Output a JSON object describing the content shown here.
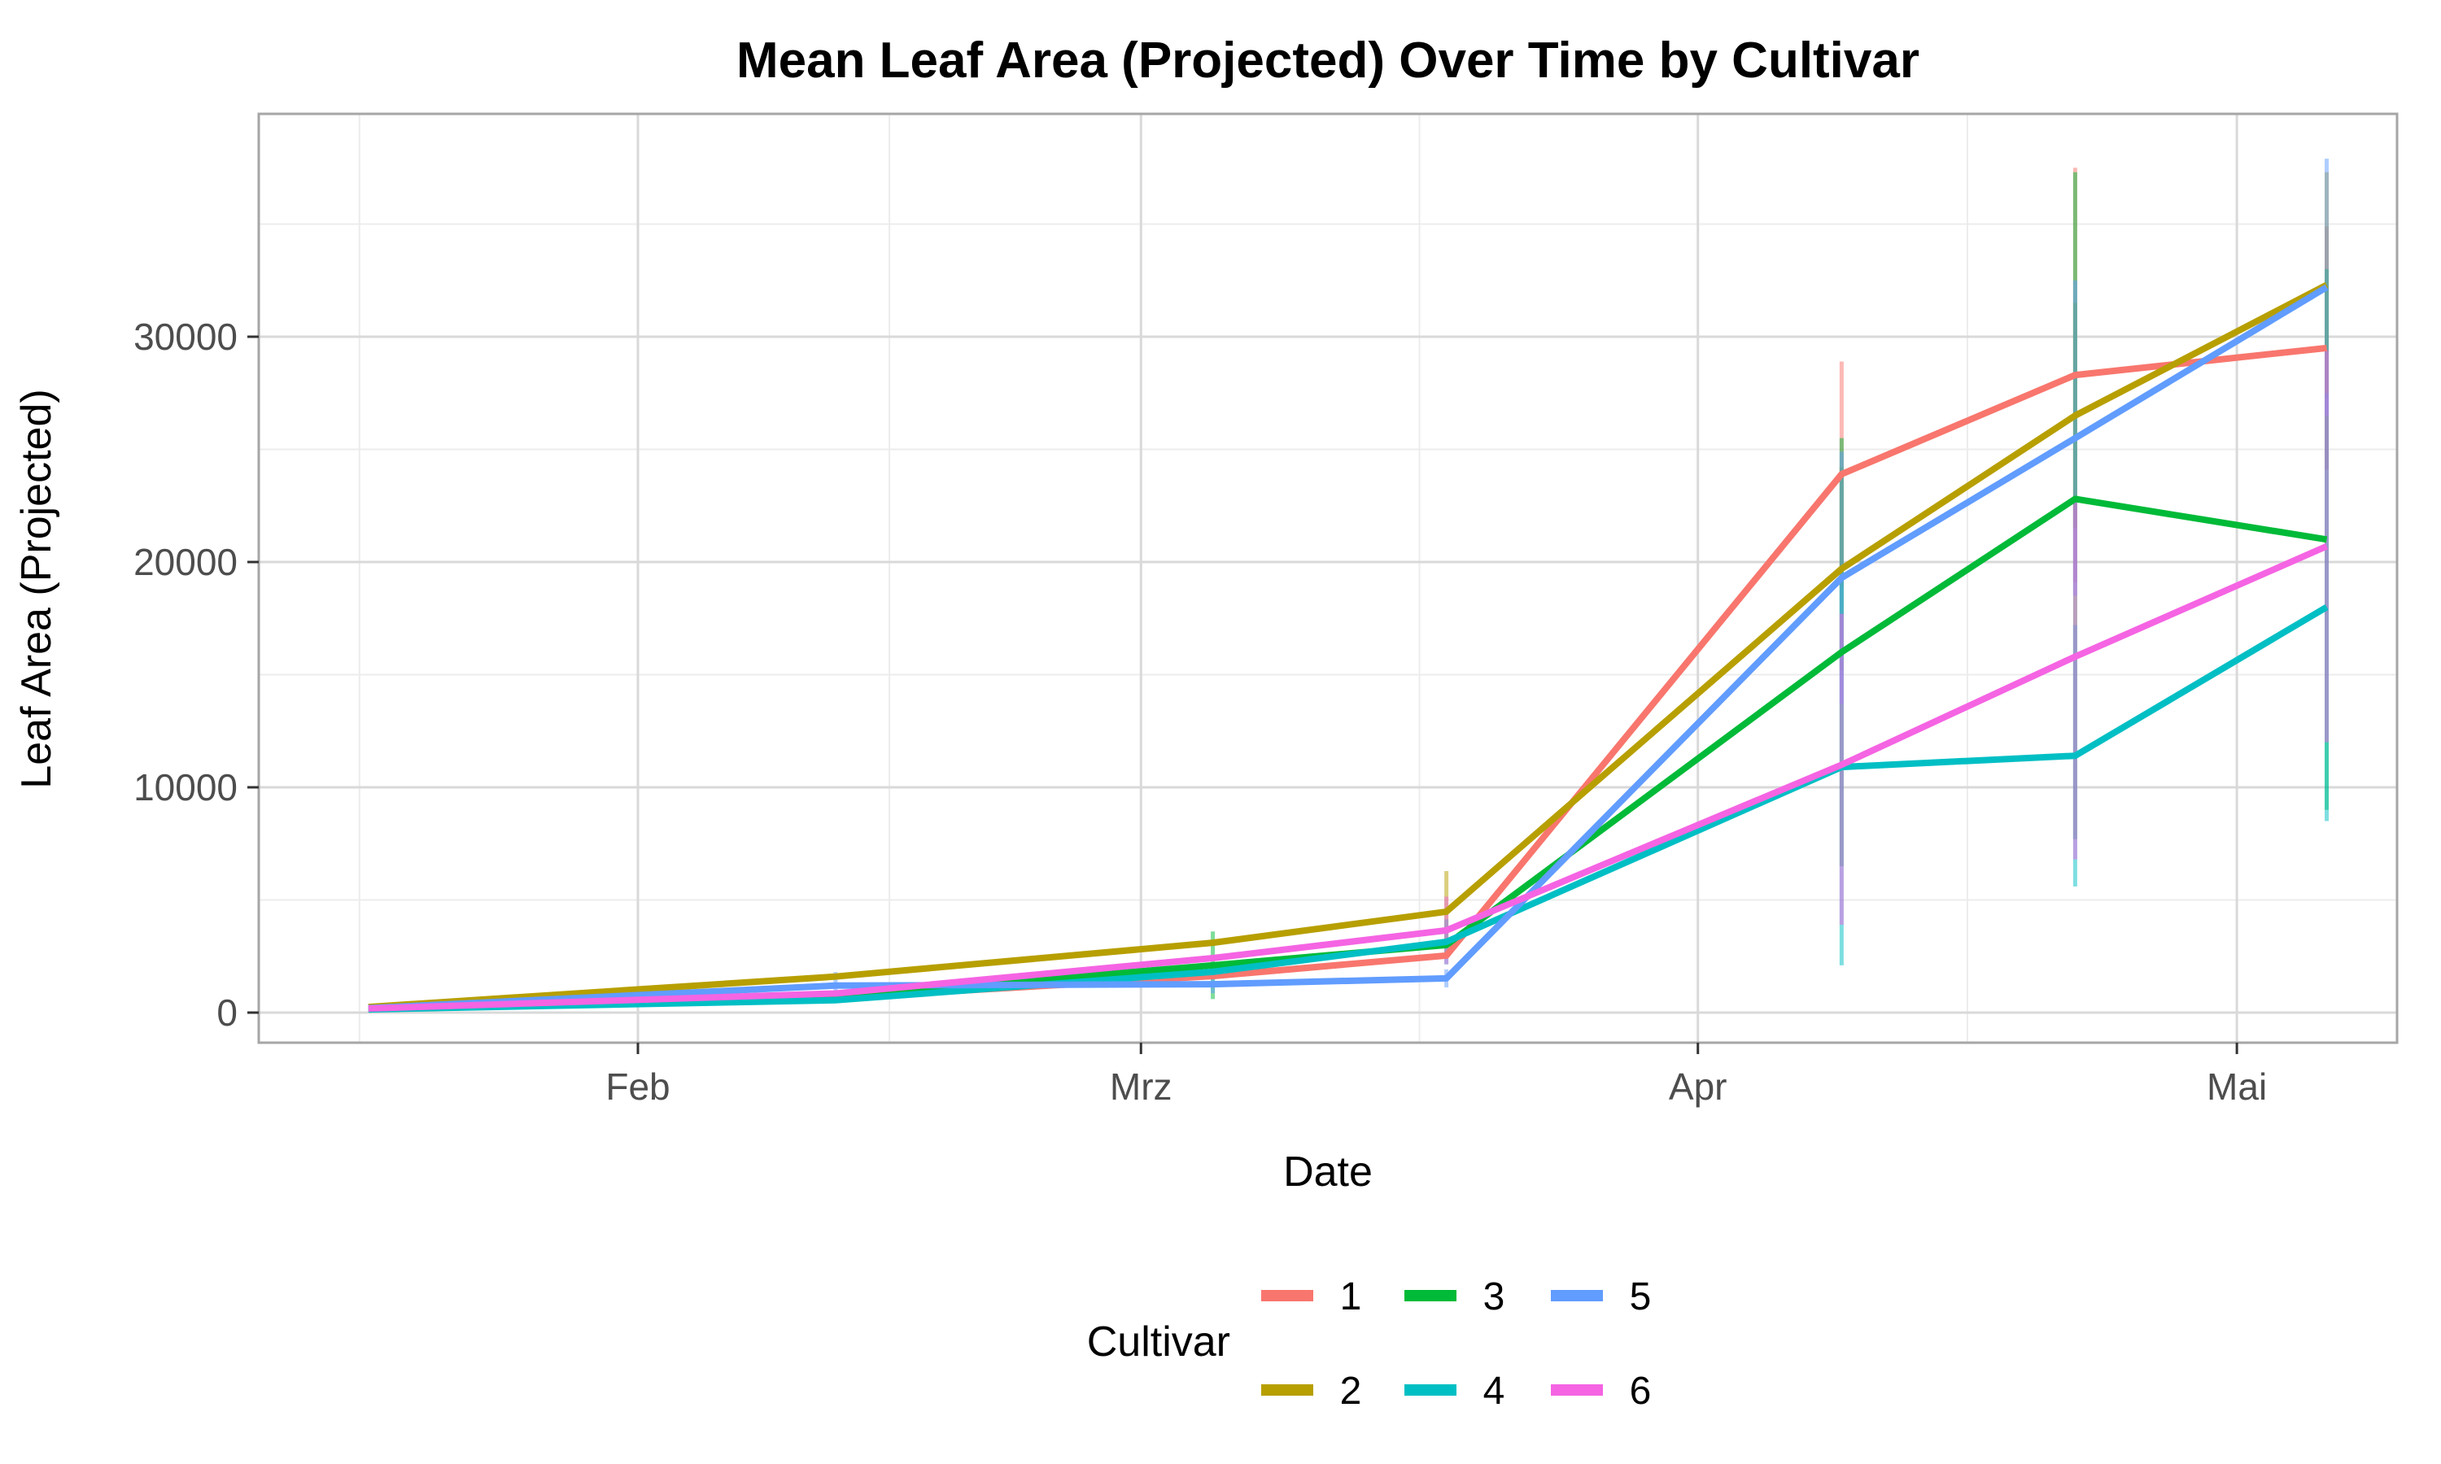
{
  "title": {
    "text": "Mean Leaf Area (Projected) Over Time by Cultivar"
  },
  "axes": {
    "x": {
      "label": "Date",
      "ticks": [
        {
          "doy": 32,
          "label": "Feb"
        },
        {
          "doy": 60,
          "label": "Mrz"
        },
        {
          "doy": 91,
          "label": "Apr"
        },
        {
          "doy": 121,
          "label": "Mai"
        }
      ],
      "minor_doy": [
        16.5,
        46,
        75.5,
        106
      ]
    },
    "y": {
      "label": "Leaf Area (Projected)",
      "ticks": [
        {
          "value": 0,
          "label": "0"
        },
        {
          "value": 10000,
          "label": "10000"
        },
        {
          "value": 20000,
          "label": "20000"
        },
        {
          "value": 30000,
          "label": "30000"
        }
      ],
      "minor": [
        5000,
        15000,
        25000,
        35000
      ]
    }
  },
  "legend": {
    "title": "Cultivar",
    "entries": [
      {
        "label": "1",
        "color": "#F8766D"
      },
      {
        "label": "2",
        "color": "#B79F00"
      },
      {
        "label": "3",
        "color": "#00BA38"
      },
      {
        "label": "4",
        "color": "#00BFC4"
      },
      {
        "label": "5",
        "color": "#619CFF"
      },
      {
        "label": "6",
        "color": "#F564E3"
      }
    ]
  },
  "style_colors": {
    "grid_major": "#d9d9d9",
    "grid_minor": "#ececec",
    "panel_border": "#a6a6a6",
    "tick_mark": "#333333",
    "tick_text": "#4d4d4d"
  },
  "chart_data": {
    "type": "line",
    "title": "Mean Leaf Area (Projected) Over Time by Cultivar",
    "xlabel": "Date",
    "ylabel": "Leaf Area (Projected)",
    "x_tick_labels": [
      "Feb",
      "Mrz",
      "Apr",
      "Mai"
    ],
    "x_doy": [
      17,
      43,
      64,
      77,
      99,
      112,
      126
    ],
    "x_dates": [
      "Jan 17",
      "Feb 12",
      "Mrz 5",
      "Mrz 18",
      "Apr 9",
      "Apr 22",
      "Mai 6"
    ],
    "ylim": [
      0,
      40000
    ],
    "grid": true,
    "legend_position": "bottom",
    "error_bars": true,
    "series": [
      {
        "name": "1",
        "color": "#F8766D",
        "values": [
          160,
          650,
          1620,
          2530,
          23900,
          28300,
          29500
        ],
        "err_lo": [
          null,
          null,
          null,
          null,
          18900,
          19100,
          24100
        ],
        "err_hi": [
          null,
          null,
          null,
          null,
          28900,
          37500,
          34900
        ]
      },
      {
        "name": "2",
        "color": "#B79F00",
        "values": [
          250,
          1600,
          3100,
          4480,
          19700,
          26500,
          32300
        ],
        "err_lo": [
          null,
          null,
          null,
          2680,
          15200,
          21500,
          27300
        ],
        "err_hi": [
          null,
          null,
          null,
          6280,
          24200,
          31500,
          37300
        ]
      },
      {
        "name": "3",
        "color": "#00BA38",
        "values": [
          170,
          700,
          2100,
          3000,
          16000,
          22800,
          21000
        ],
        "err_lo": [
          null,
          null,
          600,
          null,
          6500,
          7700,
          9000
        ],
        "err_hi": [
          null,
          null,
          3600,
          null,
          25500,
          37300,
          33000
        ]
      },
      {
        "name": "4",
        "color": "#00BFC4",
        "values": [
          140,
          550,
          1810,
          3140,
          10900,
          11400,
          18000
        ],
        "err_lo": [
          null,
          null,
          null,
          2140,
          2100,
          5600,
          8500
        ],
        "err_hi": [
          null,
          null,
          null,
          4140,
          19700,
          17200,
          27500
        ]
      },
      {
        "name": "5",
        "color": "#619CFF",
        "values": [
          200,
          1200,
          1260,
          1520,
          19300,
          25500,
          32200
        ],
        "err_lo": [
          null,
          600,
          860,
          1120,
          13700,
          18500,
          26500
        ],
        "err_hi": [
          null,
          1800,
          1660,
          1920,
          24900,
          32500,
          37900
        ]
      },
      {
        "name": "6",
        "color": "#F564E3",
        "values": [
          180,
          850,
          2420,
          3650,
          11000,
          15800,
          20700
        ],
        "err_lo": [
          null,
          null,
          null,
          2150,
          3900,
          6800,
          12000
        ],
        "err_hi": [
          null,
          null,
          null,
          5150,
          17700,
          22800,
          29400
        ]
      }
    ]
  }
}
